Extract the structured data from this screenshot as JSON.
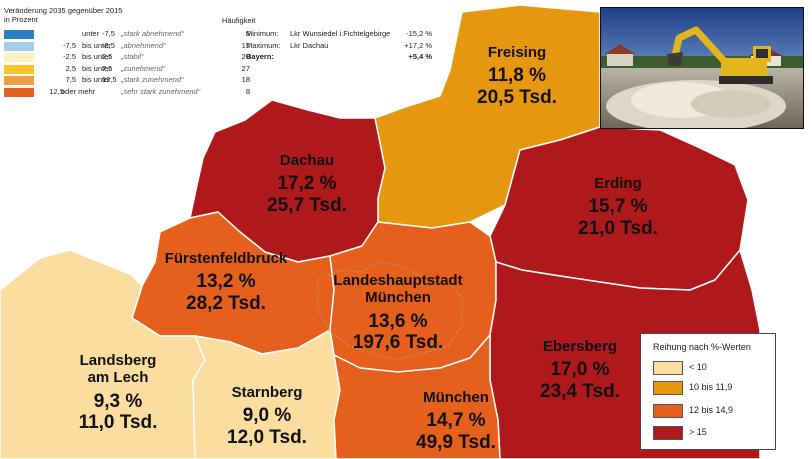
{
  "legend_top_left": {
    "header_line1": "Veränderung 2035 gegenüber 2015",
    "header_line2": "in Prozent",
    "frequency_header": "Häufigkeit",
    "classes": [
      {
        "from": "",
        "op": "unter",
        "to": "-7,5",
        "label": "„stark abnehmend“",
        "count": "6",
        "color": "#2a7fc1"
      },
      {
        "from": "-7,5",
        "op": "bis unter",
        "to": "-2,5",
        "label": "„abnehmend“",
        "count": "17",
        "color": "#a6cde8"
      },
      {
        "from": "-2,5",
        "op": "bis unter",
        "to": "2,5",
        "label": "„stabil“",
        "count": "20",
        "color": "#fbf3bf"
      },
      {
        "from": "2,5",
        "op": "bis unter",
        "to": "7,5",
        "label": "„zunehmend“",
        "count": "27",
        "color": "#f6c428"
      },
      {
        "from": "7,5",
        "op": "bis unter",
        "to": "12,5",
        "label": "„stark zunehmend“",
        "count": "18",
        "color": "#f0a043"
      },
      {
        "from": "12,5",
        "op": "oder mehr",
        "to": "",
        "label": "„sehr stark zunehmend“",
        "count": "8",
        "color": "#e4601c"
      }
    ],
    "stats": [
      {
        "label": "Minimum:",
        "region": "Lkr Wunsiedel i.Fichtelgebirge",
        "value": "-15,2 %",
        "bold": false
      },
      {
        "label": "Maximum:",
        "region": "Lkr Dachau",
        "value": "+17,2 %",
        "bold": false
      },
      {
        "label": "Bayern:",
        "region": "",
        "value": "+5,4 %",
        "bold": true
      }
    ]
  },
  "regions": [
    {
      "key": "freising",
      "name": "Freising",
      "pct": "11,8 %",
      "tsd": "20,5 Tsd.",
      "color": "#e69710"
    },
    {
      "key": "dachau",
      "name": "Dachau",
      "pct": "17,2 %",
      "tsd": "25,7 Tsd.",
      "color": "#b0191c"
    },
    {
      "key": "erding",
      "name": "Erding",
      "pct": "15,7 %",
      "tsd": "21,0 Tsd.",
      "color": "#b0191c"
    },
    {
      "key": "fuerstenfeldbruck",
      "name": "Fürstenfeldbruck",
      "pct": "13,2 %",
      "tsd": "28,2 Tsd.",
      "color": "#e4601c"
    },
    {
      "key": "landeshauptstadt",
      "name_line1": "Landeshauptstadt",
      "name_line2": "München",
      "pct": "13,6 %",
      "tsd": "197,6 Tsd.",
      "color": "#e4601c"
    },
    {
      "key": "ebersberg",
      "name": "Ebersberg",
      "pct": "17,0 %",
      "tsd": "23,4 Tsd.",
      "color": "#b0191c"
    },
    {
      "key": "landsberg",
      "name_line1": "Landsberg",
      "name_line2": "am Lech",
      "pct": "9,3 %",
      "tsd": "11,0 Tsd.",
      "color": "#fbdda0"
    },
    {
      "key": "starnberg",
      "name": "Starnberg",
      "pct": "9,0 %",
      "tsd": "12,0 Tsd.",
      "color": "#fbdda0"
    },
    {
      "key": "muenchen_lkr",
      "name": "München",
      "pct": "14,7 %",
      "tsd": "49,9 Tsd.",
      "color": "#e4601c"
    }
  ],
  "legend_bottom_right": {
    "title": "Reihung nach %-Werten",
    "items": [
      {
        "label": "< 10",
        "color": "#fbdda0"
      },
      {
        "label": "10 bis 11,9",
        "color": "#e69710"
      },
      {
        "label": "12 bis 14,9",
        "color": "#e4601c"
      },
      {
        "label": "> 15",
        "color": "#b0191c"
      }
    ]
  },
  "photo": {
    "icon": "excavator-photo"
  }
}
